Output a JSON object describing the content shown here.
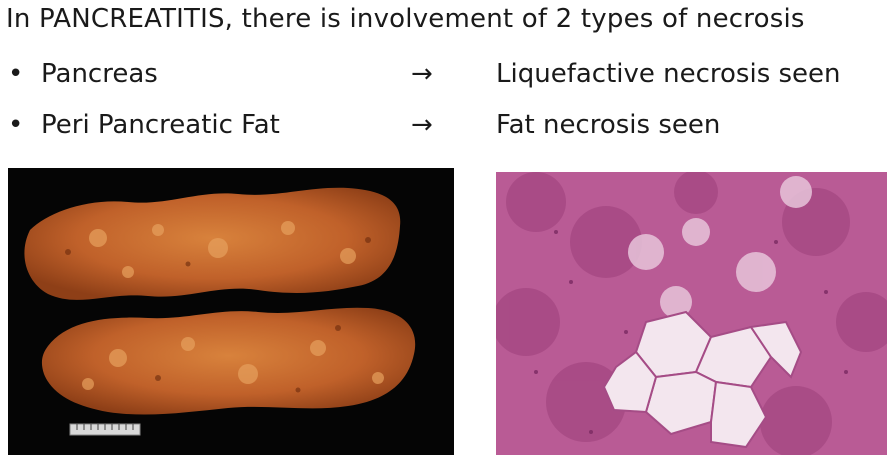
{
  "slide": {
    "title": "In PANCREATITIS, there is involvement of 2 types of necrosis",
    "rows": [
      {
        "bullet": "•",
        "term": "Pancreas",
        "arrow": "→",
        "result": "Liquefactive necrosis seen"
      },
      {
        "bullet": "•",
        "term": "Peri Pancreatic Fat",
        "arrow": "→",
        "result": "Fat necrosis seen"
      }
    ]
  },
  "images": {
    "gross_specimen": {
      "kind": "photo",
      "background": "#050505",
      "tissue_color": "#c8662a"
    },
    "histology": {
      "kind": "micrograph",
      "stain_color": "#b85a94",
      "fat_cell_color": "#f1e1ec"
    }
  }
}
